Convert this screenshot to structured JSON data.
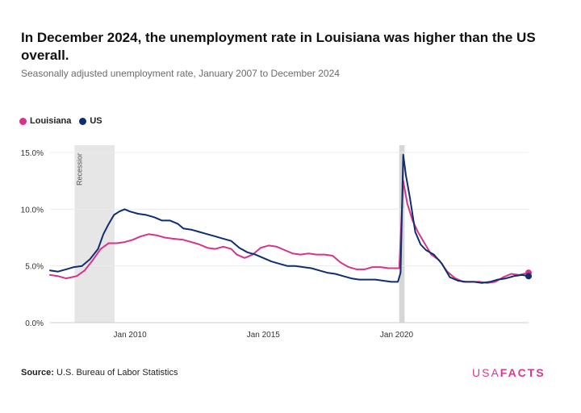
{
  "header": {
    "title": "In December 2024, the unemployment rate in Louisiana was higher than the US overall.",
    "subtitle": "Seasonally adjusted unemployment rate, January 2007 to December 2024"
  },
  "footer": {
    "source_label": "Source:",
    "source_text": "U.S. Bureau of Labor Statistics",
    "logo_part1": "USA",
    "logo_part2": "FACTS"
  },
  "chart_data": {
    "type": "line",
    "xlim": [
      2007.0,
      2024.95
    ],
    "ylim": [
      0,
      15.5
    ],
    "grid": true,
    "legend_position": "top-left",
    "y_ticks": [
      0,
      5,
      10,
      15
    ],
    "y_tick_labels": [
      "0.0%",
      "5.0%",
      "10.0%",
      "15.0%"
    ],
    "x_ticks": [
      2010,
      2015,
      2020
    ],
    "x_tick_labels": [
      "Jan 2010",
      "Jan 2015",
      "Jan 2020"
    ],
    "shaded_regions": [
      {
        "label": "Recession",
        "start": 2007.92,
        "end": 2009.42,
        "color": "#e6e6e6"
      },
      {
        "label": "",
        "start": 2020.1,
        "end": 2020.3,
        "color": "#d6d6d6"
      }
    ],
    "series": [
      {
        "name": "Louisiana",
        "color": "#d6338a",
        "end_marker": true,
        "x": [
          2007.0,
          2007.3,
          2007.6,
          2008.0,
          2008.3,
          2008.6,
          2008.9,
          2009.2,
          2009.5,
          2009.8,
          2010.1,
          2010.4,
          2010.7,
          2011.0,
          2011.3,
          2011.6,
          2012.0,
          2012.3,
          2012.6,
          2012.9,
          2013.2,
          2013.5,
          2013.8,
          2014.0,
          2014.3,
          2014.6,
          2014.9,
          2015.2,
          2015.5,
          2015.8,
          2016.1,
          2016.4,
          2016.7,
          2017.0,
          2017.3,
          2017.6,
          2017.9,
          2018.2,
          2018.5,
          2018.8,
          2019.1,
          2019.4,
          2019.7,
          2020.0,
          2020.1,
          2020.25,
          2020.4,
          2020.6,
          2020.8,
          2021.0,
          2021.3,
          2021.6,
          2021.9,
          2022.2,
          2022.5,
          2022.8,
          2023.1,
          2023.4,
          2023.7,
          2024.0,
          2024.3,
          2024.6,
          2024.95
        ],
        "values": [
          4.2,
          4.1,
          3.9,
          4.1,
          4.6,
          5.5,
          6.5,
          7.0,
          7.0,
          7.1,
          7.3,
          7.6,
          7.8,
          7.7,
          7.5,
          7.4,
          7.3,
          7.1,
          6.9,
          6.6,
          6.5,
          6.7,
          6.5,
          6.0,
          5.7,
          6.0,
          6.6,
          6.8,
          6.7,
          6.4,
          6.1,
          6.0,
          6.1,
          6.0,
          6.0,
          5.9,
          5.3,
          4.9,
          4.7,
          4.7,
          4.9,
          4.9,
          4.8,
          4.8,
          4.8,
          12.5,
          10.5,
          9.0,
          8.0,
          7.2,
          6.0,
          5.5,
          4.5,
          3.9,
          3.6,
          3.6,
          3.6,
          3.5,
          3.6,
          4.0,
          4.3,
          4.2,
          4.4
        ]
      },
      {
        "name": "US",
        "color": "#0f2e6e",
        "end_marker": true,
        "x": [
          2007.0,
          2007.3,
          2007.6,
          2007.9,
          2008.2,
          2008.5,
          2008.8,
          2009.0,
          2009.2,
          2009.4,
          2009.6,
          2009.8,
          2010.0,
          2010.3,
          2010.6,
          2010.9,
          2011.2,
          2011.5,
          2011.8,
          2012.0,
          2012.3,
          2012.6,
          2012.9,
          2013.2,
          2013.5,
          2013.8,
          2014.1,
          2014.4,
          2014.7,
          2015.0,
          2015.3,
          2015.6,
          2015.9,
          2016.2,
          2016.5,
          2016.8,
          2017.1,
          2017.4,
          2017.7,
          2018.0,
          2018.3,
          2018.6,
          2018.9,
          2019.2,
          2019.5,
          2019.8,
          2020.05,
          2020.15,
          2020.25,
          2020.35,
          2020.5,
          2020.7,
          2020.9,
          2021.1,
          2021.4,
          2021.7,
          2022.0,
          2022.3,
          2022.6,
          2022.9,
          2023.2,
          2023.5,
          2023.8,
          2024.1,
          2024.4,
          2024.7,
          2024.95
        ],
        "values": [
          4.6,
          4.5,
          4.7,
          4.9,
          5.0,
          5.6,
          6.5,
          7.8,
          8.7,
          9.5,
          9.8,
          10.0,
          9.8,
          9.6,
          9.5,
          9.3,
          9.0,
          9.0,
          8.7,
          8.3,
          8.2,
          8.0,
          7.8,
          7.6,
          7.4,
          7.2,
          6.6,
          6.2,
          6.0,
          5.7,
          5.4,
          5.2,
          5.0,
          5.0,
          4.9,
          4.8,
          4.6,
          4.4,
          4.3,
          4.1,
          3.9,
          3.8,
          3.8,
          3.8,
          3.7,
          3.6,
          3.6,
          4.4,
          14.8,
          13.0,
          11.0,
          8.0,
          6.9,
          6.4,
          6.0,
          5.2,
          4.0,
          3.7,
          3.6,
          3.6,
          3.5,
          3.6,
          3.8,
          3.9,
          4.1,
          4.2,
          4.1
        ]
      }
    ]
  }
}
